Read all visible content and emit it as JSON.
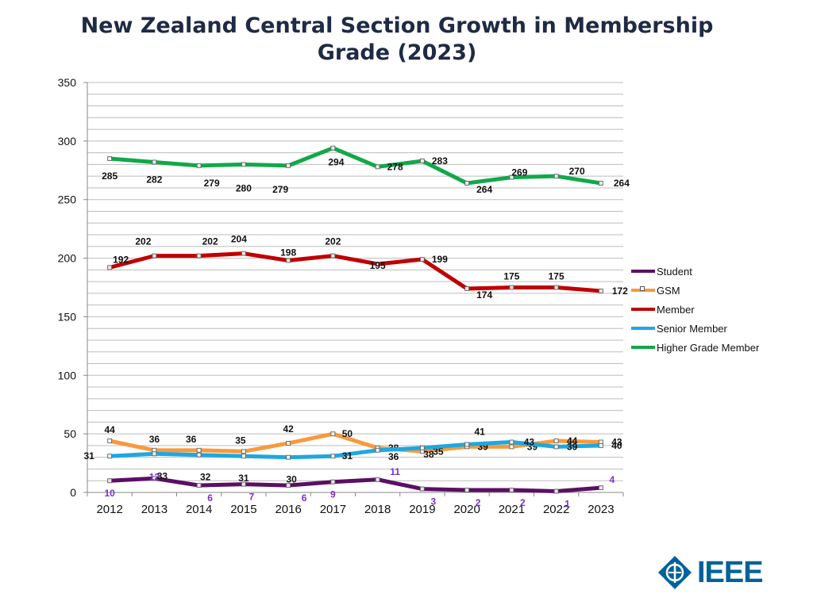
{
  "chart_data": {
    "type": "line",
    "title": "New Zealand Central Section Growth in Membership Grade (2023)",
    "categories": [
      "2012",
      "2013",
      "2014",
      "2015",
      "2016",
      "2017",
      "2018",
      "2019",
      "2020",
      "2021",
      "2022",
      "2023"
    ],
    "ylim": [
      0,
      350
    ],
    "yticks": [
      0,
      50,
      100,
      150,
      200,
      250,
      300,
      350
    ],
    "grid": true,
    "legend_position": "right",
    "series": [
      {
        "name": "Student",
        "color": "#5b0f63",
        "label_color": "#7a32c8",
        "values": [
          10,
          12,
          6,
          7,
          6,
          9,
          11,
          3,
          2,
          2,
          1,
          4
        ]
      },
      {
        "name": "GSM",
        "color": "#f79a3c",
        "label_color": "#111111",
        "values": [
          44,
          36,
          36,
          35,
          42,
          50,
          38,
          35,
          39,
          39,
          44,
          43
        ]
      },
      {
        "name": "Member",
        "color": "#c00000",
        "label_color": "#111111",
        "values": [
          192,
          202,
          202,
          204,
          198,
          202,
          195,
          199,
          174,
          175,
          175,
          172
        ]
      },
      {
        "name": "Senior Member",
        "color": "#1ea7e1",
        "label_color": "#111111",
        "values": [
          31,
          33,
          32,
          31,
          30,
          31,
          36,
          38,
          41,
          43,
          39,
          40
        ]
      },
      {
        "name": "Higher Grade Member",
        "color": "#12a84a",
        "label_color": "#111111",
        "values": [
          285,
          282,
          279,
          280,
          279,
          294,
          278,
          283,
          264,
          269,
          270,
          264
        ]
      }
    ]
  },
  "logo": {
    "text": "IEEE",
    "color": "#00629B"
  }
}
